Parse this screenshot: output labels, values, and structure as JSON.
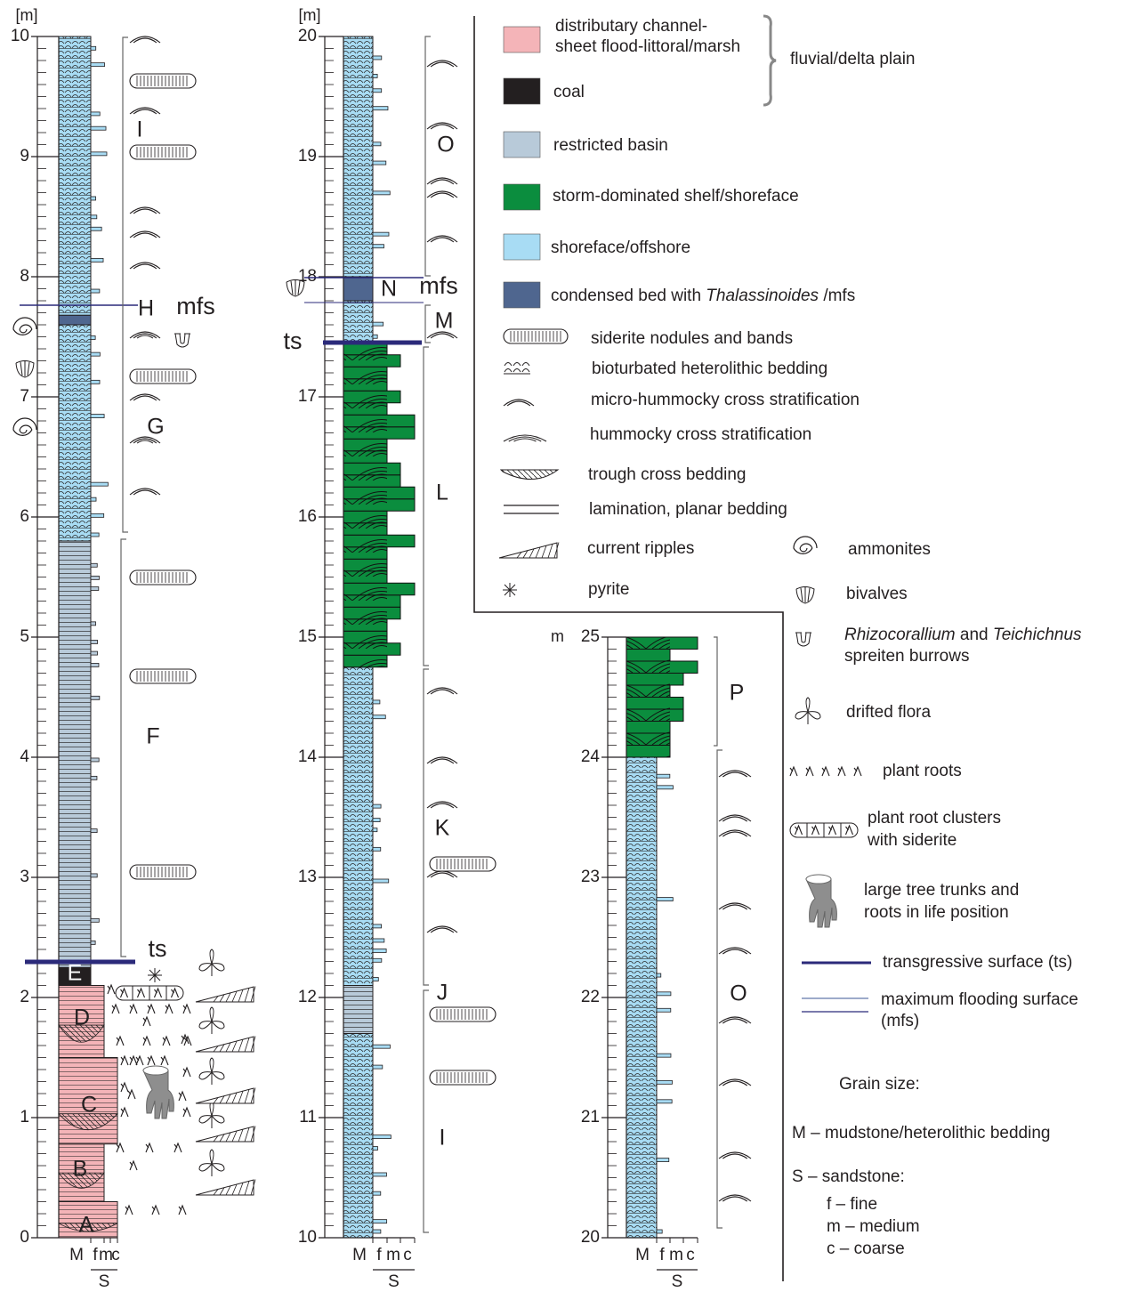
{
  "columns": [
    {
      "unit_label": "[m]",
      "range": [
        0,
        10
      ],
      "ticks": [
        0,
        1,
        2,
        3,
        4,
        5,
        6,
        7,
        8,
        9,
        10
      ],
      "units": [
        "A",
        "B",
        "C",
        "D",
        "E",
        "F",
        "G",
        "H",
        "I"
      ],
      "surface_labels": [
        "ts",
        "mfs"
      ],
      "grain_size": [
        "M",
        "f",
        "m",
        "c"
      ],
      "sandstone": "S"
    },
    {
      "unit_label": "[m]",
      "range": [
        10,
        20
      ],
      "ticks": [
        10,
        11,
        12,
        13,
        14,
        15,
        16,
        17,
        18,
        19,
        20
      ],
      "units": [
        "I",
        "J",
        "K",
        "L",
        "M",
        "N",
        "O"
      ],
      "surface_labels": [
        "ts",
        "mfs"
      ],
      "grain_size": [
        "M",
        "f",
        "m",
        "c"
      ],
      "sandstone": "S"
    },
    {
      "unit_label": "m",
      "range": [
        20,
        25
      ],
      "ticks": [
        20,
        21,
        22,
        23,
        24,
        25
      ],
      "units": [
        "O",
        "P"
      ],
      "surface_labels": [],
      "grain_size": [
        "M",
        "f",
        "m",
        "c"
      ],
      "sandstone": "S"
    }
  ],
  "legend": {
    "facies": [
      {
        "color": "#f4b4b8",
        "lines": [
          [
            "distributary channel-"
          ],
          [
            "sheet flood-littoral/marsh"
          ]
        ]
      },
      {
        "color": "#231f20",
        "lines": [
          [
            "coal"
          ]
        ]
      },
      {
        "color": "#b8cad9",
        "lines": [
          [
            "restricted basin"
          ]
        ]
      },
      {
        "color": "#0b8d3e",
        "lines": [
          [
            "storm-dominated shelf/shoreface"
          ]
        ]
      },
      {
        "color": "#a8dcf4",
        "lines": [
          [
            "shoreface/offshore"
          ]
        ]
      },
      {
        "color": "#4f668f",
        "lines": [
          [
            "condensed bed with ",
            {
              "text": "Thalassinoides",
              "italic": true
            },
            " /mfs"
          ]
        ]
      }
    ],
    "group": "fluvial/delta plain",
    "symbols": [
      {
        "lines": [
          [
            "siderite nodules and bands"
          ]
        ]
      },
      {
        "lines": [
          [
            "bioturbated heterolithic bedding"
          ]
        ]
      },
      {
        "lines": [
          [
            "micro-hummocky cross stratification"
          ]
        ]
      },
      {
        "lines": [
          [
            "hummocky cross stratification"
          ]
        ]
      },
      {
        "lines": [
          [
            "trough cross bedding"
          ]
        ]
      },
      {
        "lines": [
          [
            "lamination, planar bedding"
          ]
        ]
      },
      {
        "lines": [
          [
            "current ripples"
          ]
        ]
      },
      {
        "lines": [
          [
            "pyrite"
          ]
        ]
      },
      {
        "lines": [
          [
            "ammonites"
          ]
        ]
      },
      {
        "lines": [
          [
            "bivalves"
          ]
        ]
      },
      {
        "lines": [
          [
            {
              "text": "Rhizocorallium",
              "italic": true
            },
            " and ",
            {
              "text": "Teichichnus",
              "italic": true
            }
          ],
          [
            "spreiten burrows"
          ]
        ]
      },
      {
        "lines": [
          [
            "drifted flora"
          ]
        ]
      },
      {
        "lines": [
          [
            "plant roots"
          ]
        ]
      },
      {
        "lines": [
          [
            "plant root clusters"
          ],
          [
            "with siderite"
          ]
        ]
      },
      {
        "lines": [
          [
            "large tree trunks and"
          ],
          [
            "roots in life position"
          ]
        ]
      },
      {
        "lines": [
          [
            "transgressive surface (ts)"
          ]
        ]
      },
      {
        "lines": [
          [
            "maximum flooding surface"
          ],
          [
            "(mfs)"
          ]
        ]
      }
    ],
    "grain_size": {
      "title": "Grain size:",
      "lines": [
        "M – mudstone/heterolithic bedding",
        "S – sandstone:",
        "f – fine",
        "m – medium",
        "c – coarse"
      ]
    }
  }
}
